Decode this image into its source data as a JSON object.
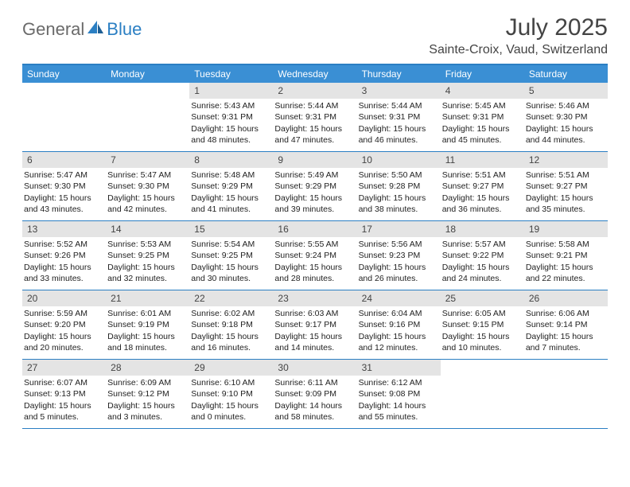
{
  "logo": {
    "general": "General",
    "blue": "Blue"
  },
  "title": "July 2025",
  "location": "Sainte-Croix, Vaud, Switzerland",
  "weekdays": [
    "Sunday",
    "Monday",
    "Tuesday",
    "Wednesday",
    "Thursday",
    "Friday",
    "Saturday"
  ],
  "styling": {
    "header_bg": "#3a8fd4",
    "daynum_bg": "#e4e4e4",
    "border_color": "#2b7fc3",
    "body_font_size": 10.5,
    "title_font_size": 30,
    "location_font_size": 16,
    "weekday_font_size": 12
  },
  "weeks": [
    [
      null,
      null,
      {
        "n": "1",
        "sunrise": "Sunrise: 5:43 AM",
        "sunset": "Sunset: 9:31 PM",
        "daylight": "Daylight: 15 hours and 48 minutes."
      },
      {
        "n": "2",
        "sunrise": "Sunrise: 5:44 AM",
        "sunset": "Sunset: 9:31 PM",
        "daylight": "Daylight: 15 hours and 47 minutes."
      },
      {
        "n": "3",
        "sunrise": "Sunrise: 5:44 AM",
        "sunset": "Sunset: 9:31 PM",
        "daylight": "Daylight: 15 hours and 46 minutes."
      },
      {
        "n": "4",
        "sunrise": "Sunrise: 5:45 AM",
        "sunset": "Sunset: 9:31 PM",
        "daylight": "Daylight: 15 hours and 45 minutes."
      },
      {
        "n": "5",
        "sunrise": "Sunrise: 5:46 AM",
        "sunset": "Sunset: 9:30 PM",
        "daylight": "Daylight: 15 hours and 44 minutes."
      }
    ],
    [
      {
        "n": "6",
        "sunrise": "Sunrise: 5:47 AM",
        "sunset": "Sunset: 9:30 PM",
        "daylight": "Daylight: 15 hours and 43 minutes."
      },
      {
        "n": "7",
        "sunrise": "Sunrise: 5:47 AM",
        "sunset": "Sunset: 9:30 PM",
        "daylight": "Daylight: 15 hours and 42 minutes."
      },
      {
        "n": "8",
        "sunrise": "Sunrise: 5:48 AM",
        "sunset": "Sunset: 9:29 PM",
        "daylight": "Daylight: 15 hours and 41 minutes."
      },
      {
        "n": "9",
        "sunrise": "Sunrise: 5:49 AM",
        "sunset": "Sunset: 9:29 PM",
        "daylight": "Daylight: 15 hours and 39 minutes."
      },
      {
        "n": "10",
        "sunrise": "Sunrise: 5:50 AM",
        "sunset": "Sunset: 9:28 PM",
        "daylight": "Daylight: 15 hours and 38 minutes."
      },
      {
        "n": "11",
        "sunrise": "Sunrise: 5:51 AM",
        "sunset": "Sunset: 9:27 PM",
        "daylight": "Daylight: 15 hours and 36 minutes."
      },
      {
        "n": "12",
        "sunrise": "Sunrise: 5:51 AM",
        "sunset": "Sunset: 9:27 PM",
        "daylight": "Daylight: 15 hours and 35 minutes."
      }
    ],
    [
      {
        "n": "13",
        "sunrise": "Sunrise: 5:52 AM",
        "sunset": "Sunset: 9:26 PM",
        "daylight": "Daylight: 15 hours and 33 minutes."
      },
      {
        "n": "14",
        "sunrise": "Sunrise: 5:53 AM",
        "sunset": "Sunset: 9:25 PM",
        "daylight": "Daylight: 15 hours and 32 minutes."
      },
      {
        "n": "15",
        "sunrise": "Sunrise: 5:54 AM",
        "sunset": "Sunset: 9:25 PM",
        "daylight": "Daylight: 15 hours and 30 minutes."
      },
      {
        "n": "16",
        "sunrise": "Sunrise: 5:55 AM",
        "sunset": "Sunset: 9:24 PM",
        "daylight": "Daylight: 15 hours and 28 minutes."
      },
      {
        "n": "17",
        "sunrise": "Sunrise: 5:56 AM",
        "sunset": "Sunset: 9:23 PM",
        "daylight": "Daylight: 15 hours and 26 minutes."
      },
      {
        "n": "18",
        "sunrise": "Sunrise: 5:57 AM",
        "sunset": "Sunset: 9:22 PM",
        "daylight": "Daylight: 15 hours and 24 minutes."
      },
      {
        "n": "19",
        "sunrise": "Sunrise: 5:58 AM",
        "sunset": "Sunset: 9:21 PM",
        "daylight": "Daylight: 15 hours and 22 minutes."
      }
    ],
    [
      {
        "n": "20",
        "sunrise": "Sunrise: 5:59 AM",
        "sunset": "Sunset: 9:20 PM",
        "daylight": "Daylight: 15 hours and 20 minutes."
      },
      {
        "n": "21",
        "sunrise": "Sunrise: 6:01 AM",
        "sunset": "Sunset: 9:19 PM",
        "daylight": "Daylight: 15 hours and 18 minutes."
      },
      {
        "n": "22",
        "sunrise": "Sunrise: 6:02 AM",
        "sunset": "Sunset: 9:18 PM",
        "daylight": "Daylight: 15 hours and 16 minutes."
      },
      {
        "n": "23",
        "sunrise": "Sunrise: 6:03 AM",
        "sunset": "Sunset: 9:17 PM",
        "daylight": "Daylight: 15 hours and 14 minutes."
      },
      {
        "n": "24",
        "sunrise": "Sunrise: 6:04 AM",
        "sunset": "Sunset: 9:16 PM",
        "daylight": "Daylight: 15 hours and 12 minutes."
      },
      {
        "n": "25",
        "sunrise": "Sunrise: 6:05 AM",
        "sunset": "Sunset: 9:15 PM",
        "daylight": "Daylight: 15 hours and 10 minutes."
      },
      {
        "n": "26",
        "sunrise": "Sunrise: 6:06 AM",
        "sunset": "Sunset: 9:14 PM",
        "daylight": "Daylight: 15 hours and 7 minutes."
      }
    ],
    [
      {
        "n": "27",
        "sunrise": "Sunrise: 6:07 AM",
        "sunset": "Sunset: 9:13 PM",
        "daylight": "Daylight: 15 hours and 5 minutes."
      },
      {
        "n": "28",
        "sunrise": "Sunrise: 6:09 AM",
        "sunset": "Sunset: 9:12 PM",
        "daylight": "Daylight: 15 hours and 3 minutes."
      },
      {
        "n": "29",
        "sunrise": "Sunrise: 6:10 AM",
        "sunset": "Sunset: 9:10 PM",
        "daylight": "Daylight: 15 hours and 0 minutes."
      },
      {
        "n": "30",
        "sunrise": "Sunrise: 6:11 AM",
        "sunset": "Sunset: 9:09 PM",
        "daylight": "Daylight: 14 hours and 58 minutes."
      },
      {
        "n": "31",
        "sunrise": "Sunrise: 6:12 AM",
        "sunset": "Sunset: 9:08 PM",
        "daylight": "Daylight: 14 hours and 55 minutes."
      },
      null,
      null
    ]
  ]
}
